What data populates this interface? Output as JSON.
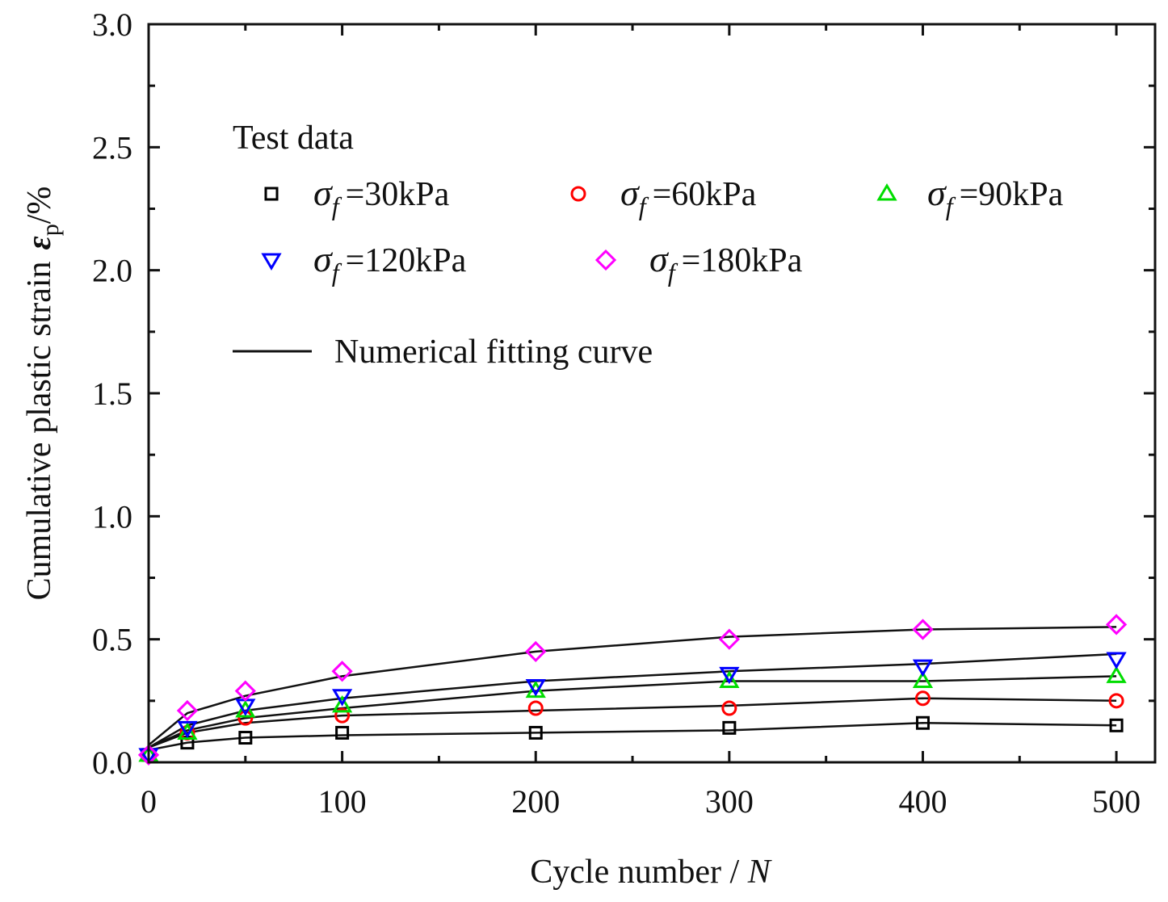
{
  "chart_data": {
    "type": "scatter",
    "title": "",
    "xlabel": "Cycle number / ",
    "xlabel_var": "N",
    "ylabel": "Cumulative plastic strain",
    "ylabel_symbol": "ε",
    "ylabel_sub": "p",
    "ylabel_unit": "/%",
    "xlim": [
      0,
      520
    ],
    "ylim": [
      0.0,
      3.0
    ],
    "x_ticks": [
      0,
      100,
      200,
      300,
      400,
      500
    ],
    "x_tick_labels": [
      "0",
      "100",
      "200",
      "300",
      "400",
      "500"
    ],
    "y_ticks": [
      0.0,
      0.5,
      1.0,
      1.5,
      2.0,
      2.5,
      3.0
    ],
    "y_tick_labels": [
      "0.0",
      "0.5",
      "1.0",
      "1.5",
      "2.0",
      "2.5",
      "3.0"
    ],
    "legend_header": "Test data",
    "legend_fit_label": "Numerical fitting curve",
    "legend_symbol": "σ",
    "legend_sub": "f",
    "x": [
      0,
      20,
      50,
      100,
      200,
      300,
      400,
      500
    ],
    "series": [
      {
        "name": "=30kPa",
        "marker": "square",
        "color": "#000000",
        "values": [
          0.03,
          0.08,
          0.1,
          0.12,
          0.12,
          0.14,
          0.16,
          0.15
        ],
        "fit": [
          0.05,
          0.08,
          0.1,
          0.11,
          0.12,
          0.13,
          0.16,
          0.15
        ]
      },
      {
        "name": "=60kPa",
        "marker": "circle",
        "color": "#ff0000",
        "values": [
          0.03,
          0.12,
          0.18,
          0.19,
          0.22,
          0.22,
          0.26,
          0.25
        ],
        "fit": [
          0.06,
          0.12,
          0.16,
          0.19,
          0.21,
          0.23,
          0.26,
          0.25
        ]
      },
      {
        "name": "=90kPa",
        "marker": "triangle-up",
        "color": "#00dd00",
        "values": [
          0.03,
          0.12,
          0.21,
          0.23,
          0.29,
          0.33,
          0.33,
          0.35
        ],
        "fit": [
          0.06,
          0.13,
          0.18,
          0.22,
          0.29,
          0.33,
          0.33,
          0.35
        ]
      },
      {
        "name": "=120kPa",
        "marker": "triangle-down",
        "color": "#0000ff",
        "values": [
          0.03,
          0.14,
          0.23,
          0.27,
          0.31,
          0.36,
          0.39,
          0.42
        ],
        "fit": [
          0.06,
          0.15,
          0.21,
          0.26,
          0.33,
          0.37,
          0.4,
          0.44
        ]
      },
      {
        "name": "=180kPa",
        "marker": "diamond",
        "color": "#ff00ff",
        "values": [
          0.03,
          0.21,
          0.29,
          0.37,
          0.45,
          0.5,
          0.54,
          0.56
        ],
        "fit": [
          0.07,
          0.2,
          0.27,
          0.35,
          0.45,
          0.51,
          0.54,
          0.55
        ]
      }
    ]
  }
}
